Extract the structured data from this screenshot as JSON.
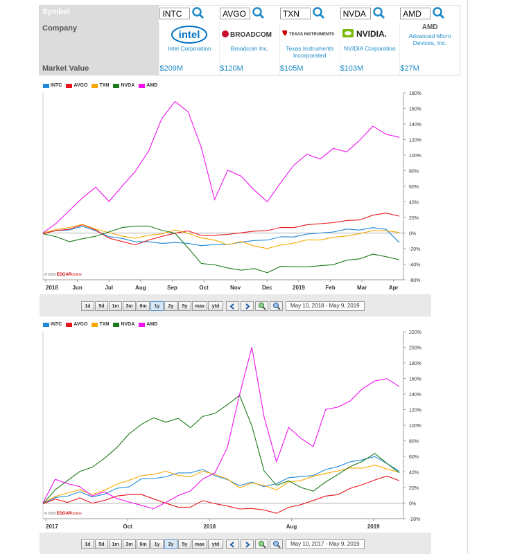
{
  "table": {
    "symbol_label": "Symbol",
    "company_label": "Company",
    "market_value_label": "Market Value",
    "symbols": [
      "INTC",
      "AVGO",
      "TXN",
      "NVDA",
      "AMD"
    ],
    "companies": [
      {
        "logo_text": "intel",
        "name": "Intel Corporation",
        "color": "#0071c5"
      },
      {
        "logo_text": "BROADCOM",
        "name": "Broadcom Inc.",
        "color": "#cc092f"
      },
      {
        "logo_text": "TEXAS INSTRUMENTS",
        "name": "Texas Instruments Incorporated",
        "color": "#cc0000"
      },
      {
        "logo_text": "NVIDIA.",
        "name": "NVIDIA Corporation",
        "color": "#76b900"
      },
      {
        "logo_text": "AMD",
        "name": "Advanced Micro Devices, Inc.",
        "color": "#555555"
      }
    ],
    "market_values": [
      "$209M",
      "$120M",
      "$105M",
      "$103M",
      "$27M"
    ]
  },
  "legend": [
    {
      "label": "INTC",
      "color": "#1e88d6"
    },
    {
      "label": "AVGO",
      "color": "#e8141b"
    },
    {
      "label": "TXN",
      "color": "#f7a800"
    },
    {
      "label": "NVDA",
      "color": "#1b7a1b"
    },
    {
      "label": "AMD",
      "color": "#ee11ee"
    }
  ],
  "toolbar": {
    "ranges": [
      "1d",
      "5d",
      "1m",
      "3m",
      "6m",
      "1y",
      "2y",
      "5y",
      "max",
      "ytd"
    ]
  },
  "watermark": {
    "year": "© 2019",
    "brand": "EDGAR",
    "suffix": "Online"
  },
  "chart_data": [
    {
      "type": "line",
      "selected_range": "1y",
      "date_range": "May 10, 2018 - May 9, 2019",
      "x_ticks": [
        "2018",
        "Jun",
        "Jul",
        "Aug",
        "Sep",
        "Oct",
        "Nov",
        "Dec",
        "2019",
        "Feb",
        "Mar",
        "Apr"
      ],
      "y_ticks": [
        "180%",
        "160%",
        "140%",
        "120%",
        "100%",
        "80%",
        "60%",
        "40%",
        "20%",
        "0%",
        "-20%",
        "-40%",
        "-60%"
      ],
      "ylim": [
        -60,
        180
      ],
      "series": [
        {
          "name": "INTC",
          "values": [
            0,
            2,
            5,
            8,
            3,
            -4,
            -8,
            -10,
            -12,
            -13,
            -12,
            -14,
            -15,
            -16,
            -14,
            -12,
            -10,
            -8,
            -6,
            -4,
            -2,
            0,
            2,
            4,
            5,
            6,
            5,
            -12
          ]
        },
        {
          "name": "AVGO",
          "values": [
            0,
            2,
            6,
            10,
            4,
            -6,
            -12,
            -14,
            -10,
            -4,
            0,
            2,
            -2,
            -4,
            -1,
            0,
            2,
            4,
            6,
            8,
            10,
            12,
            14,
            15,
            18,
            22,
            26,
            22
          ]
        },
        {
          "name": "TXN",
          "values": [
            0,
            4,
            8,
            10,
            6,
            0,
            -4,
            -6,
            -4,
            0,
            3,
            0,
            -6,
            -10,
            -14,
            -12,
            -16,
            -20,
            -16,
            -12,
            -10,
            -8,
            -6,
            -4,
            0,
            2,
            4,
            0
          ]
        },
        {
          "name": "NVDA",
          "values": [
            0,
            -6,
            -10,
            -8,
            -4,
            2,
            6,
            10,
            8,
            4,
            0,
            -20,
            -38,
            -42,
            -44,
            -48,
            -46,
            -50,
            -44,
            -42,
            -44,
            -42,
            -40,
            -36,
            -32,
            -28,
            -30,
            -34
          ]
        },
        {
          "name": "AMD",
          "values": [
            0,
            12,
            30,
            44,
            60,
            40,
            60,
            80,
            104,
            148,
            168,
            156,
            110,
            42,
            82,
            72,
            56,
            40,
            64,
            88,
            100,
            96,
            108,
            104,
            120,
            136,
            128,
            122
          ]
        }
      ]
    },
    {
      "type": "line",
      "selected_range": "2y",
      "date_range": "May 10, 2017 - May 9, 2019",
      "x_ticks": [
        "2017",
        "Oct",
        "2018",
        "Aug",
        "2019"
      ],
      "y_ticks": [
        "220%",
        "200%",
        "180%",
        "160%",
        "140%",
        "120%",
        "100%",
        "80%",
        "60%",
        "40%",
        "20%",
        "0%",
        "-20%"
      ],
      "ylim": [
        -20,
        220
      ],
      "series": [
        {
          "name": "INTC",
          "values": [
            0,
            6,
            10,
            14,
            8,
            12,
            18,
            22,
            30,
            32,
            34,
            38,
            40,
            42,
            36,
            30,
            22,
            28,
            20,
            26,
            32,
            34,
            36,
            42,
            48,
            52,
            56,
            60,
            50,
            42
          ]
        },
        {
          "name": "AVGO",
          "values": [
            0,
            4,
            2,
            6,
            0,
            4,
            8,
            12,
            10,
            6,
            0,
            -6,
            -4,
            2,
            0,
            -4,
            -8,
            -6,
            -10,
            -12,
            -6,
            -2,
            4,
            8,
            12,
            18,
            24,
            30,
            34,
            30
          ]
        },
        {
          "name": "TXN",
          "values": [
            0,
            8,
            14,
            16,
            12,
            16,
            24,
            30,
            34,
            38,
            40,
            36,
            34,
            40,
            38,
            30,
            20,
            26,
            22,
            18,
            26,
            30,
            34,
            38,
            42,
            44,
            46,
            48,
            44,
            40
          ]
        },
        {
          "name": "NVDA",
          "values": [
            0,
            16,
            30,
            40,
            46,
            58,
            70,
            90,
            100,
            110,
            104,
            108,
            98,
            110,
            116,
            126,
            138,
            100,
            40,
            24,
            28,
            20,
            16,
            26,
            38,
            46,
            54,
            64,
            50,
            40
          ]
        },
        {
          "name": "AMD",
          "values": [
            0,
            30,
            26,
            20,
            10,
            14,
            6,
            2,
            -4,
            -6,
            0,
            10,
            16,
            30,
            40,
            70,
            140,
            200,
            110,
            54,
            96,
            84,
            72,
            120,
            124,
            130,
            148,
            156,
            160,
            150
          ]
        }
      ]
    }
  ]
}
